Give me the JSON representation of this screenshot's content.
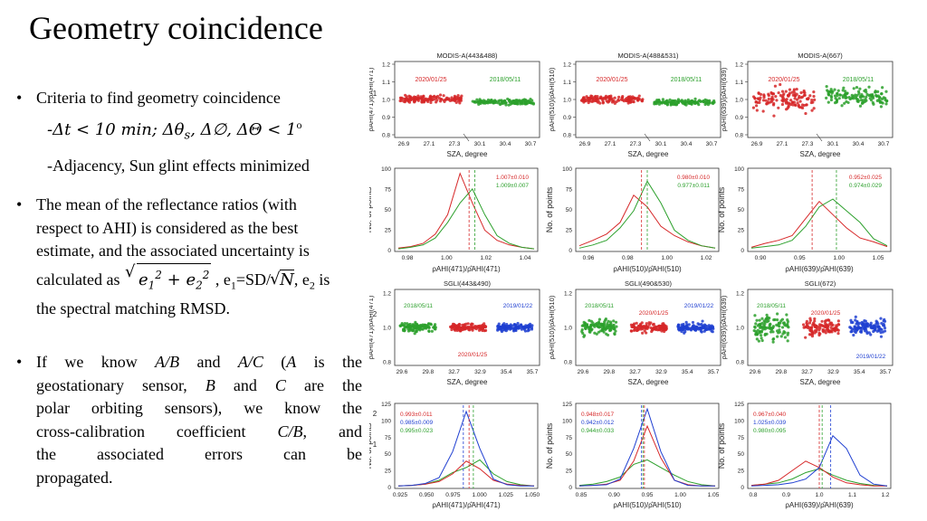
{
  "slide": {
    "title": "Geometry coincidence",
    "bullet1": {
      "lead": "Criteria to find geometry coincidence",
      "sub1_a": "-Δt < 10 min; Δθ",
      "sub1_s": "s",
      "sub1_b": ", Δ∅, ΔΘ < 1",
      "sub1_o": "o",
      "sub2": "-Adjacency, Sun glint effects minimized"
    },
    "bullet2": {
      "line1": "The mean of the reflectance ratios (with",
      "line2": "respect to AHI) is considered as the best",
      "line3": "estimate, and the associated uncertainty is",
      "calc": "calculated as",
      "e1": "e",
      "sub_1": "1",
      "sup_2": "2",
      "plus": "+",
      "e2": "e",
      "sub_2": "2",
      "after1": ", e",
      "sd_text": "=SD/",
      "n": "N",
      "after2": ", e",
      "is": "is",
      "line_last": "the spectral matching RMSD."
    },
    "bullet3": {
      "l1_pre": "If we know ",
      "ab": "A/B",
      "and": " and ",
      "ac": "A/C",
      "l1_mid": " (",
      "a": "A",
      "l1_end": " is the",
      "l2_pre": "geostationary sensor, ",
      "b": "B",
      "l2_and": " and ",
      "c": "C",
      "l2_end": " are the",
      "line3": "polar orbiting sensors), we know the",
      "l4_pre": "cross-calibration coefficient ",
      "cb": "C/B",
      "l4_end": ", and",
      "line5": "the associated errors can be",
      "line6": "propagated."
    }
  },
  "colors": {
    "red": "#d62728",
    "green": "#2ca02c",
    "blue": "#1f3fd1"
  },
  "figure": {
    "row1_titles": [
      "MODIS-A(443&488)",
      "MODIS-A(488&531)",
      "MODIS-A(667)"
    ],
    "row1_ylabels": [
      "ρAHI(471)/ρ̂AHI(471)",
      "ρAHI(510)/ρ̂AHI(510)",
      "ρAHI(639)/ρ̂AHI(639)"
    ],
    "row1_yticks": [
      "1.2",
      "1.1",
      "1.0",
      "0.9",
      "0.8"
    ],
    "row1_xticks": [
      "26.9",
      "27.1",
      "27.3",
      "30.1",
      "30.4",
      "30.7"
    ],
    "row1_xlabel": "SZA, degree",
    "row1_dates": [
      "2020/01/25",
      "2018/05/11"
    ],
    "row2_ylabel": "No. of points",
    "row2_yticks": [
      "100",
      "75",
      "50",
      "25",
      "0"
    ],
    "row2_xticks": [
      [
        "0.98",
        "1.00",
        "1.02",
        "1.04"
      ],
      [
        "0.96",
        "0.98",
        "1.00",
        "1.02"
      ],
      [
        "0.90",
        "0.95",
        "1.00",
        "1.05"
      ]
    ],
    "row2_xlabels": [
      "ρAHI(471)/ρ̂AHI(471)",
      "ρAHI(510)/ρ̂AHI(510)",
      "ρAHI(639)/ρ̂AHI(639)"
    ],
    "row2_stats": [
      [
        "1.007±0.010",
        "1.009±0.007"
      ],
      [
        "0.980±0.010",
        "0.977±0.011"
      ],
      [
        "0.952±0.025",
        "0.974±0.029"
      ]
    ],
    "row3_titles": [
      "SGLI(443&490)",
      "SGLI(490&530)",
      "SGLI(672)"
    ],
    "row3_yticks": [
      "1.2",
      "1.0",
      "0.8"
    ],
    "row3_xticks": [
      "29.6",
      "29.8",
      "32.7",
      "32.9",
      "35.4",
      "35.7"
    ],
    "row3_xlabel": "SZA, degree",
    "row3_dates": [
      "2018/05/11",
      "2020/01/25",
      "2019/01/22"
    ],
    "row4_yticks": [
      "125",
      "100",
      "75",
      "50",
      "25",
      "0"
    ],
    "row4_xticks": [
      [
        "0.925",
        "0.950",
        "0.975",
        "1.000",
        "1.025",
        "1.050"
      ],
      [
        "0.85",
        "0.90",
        "0.95",
        "1.00",
        "1.05"
      ],
      [
        "0.8",
        "0.9",
        "1.0",
        "1.1",
        "1.2"
      ]
    ],
    "row4_stats": [
      [
        "0.993±0.011",
        "0.985±0.009",
        "0.995±0.023"
      ],
      [
        "0.948±0.017",
        "0.942±0.012",
        "0.944±0.033"
      ],
      [
        "0.967±0.040",
        "1.025±0.039",
        "0.980±0.095"
      ]
    ],
    "margin_marks": [
      "2",
      "1"
    ]
  }
}
